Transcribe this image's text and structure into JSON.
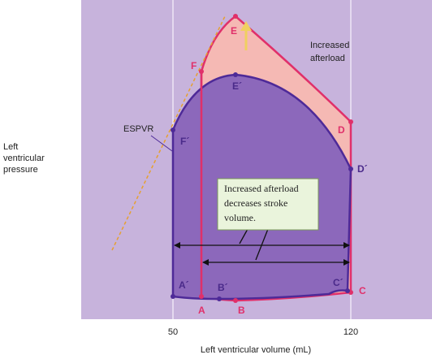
{
  "axis": {
    "x_label": "Left ventricular volume (mL)",
    "y_label": [
      "Left",
      "ventricular",
      "pressure"
    ],
    "x_ticks": [
      "50",
      "120"
    ]
  },
  "annotations": {
    "espvr": "ESPVR",
    "increased_afterload": [
      "Increased",
      "afterload"
    ],
    "callout": [
      "Increased afterload",
      "decreases stroke",
      "volume."
    ]
  },
  "points": {
    "afterload": [
      "A",
      "B",
      "C",
      "D",
      "E",
      "F"
    ],
    "normal": [
      "A´",
      "B´",
      "C´",
      "D´",
      "E´",
      "F´"
    ]
  }
}
